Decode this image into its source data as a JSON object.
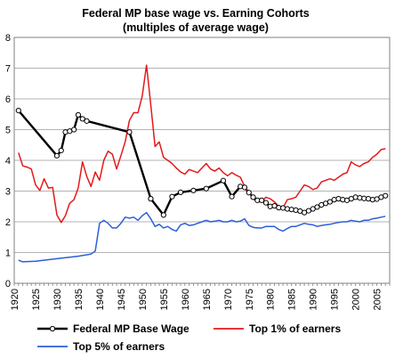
{
  "chart_data": {
    "type": "line",
    "title": "Federal MP base wage vs. Earning Cohorts",
    "subtitle": "(multiples of average wage)",
    "xlabel": "",
    "ylabel": "",
    "xlim": [
      1920,
      2008
    ],
    "ylim": [
      0,
      8
    ],
    "y_ticks": [
      0,
      1,
      2,
      3,
      4,
      5,
      6,
      7,
      8
    ],
    "x_ticks": [
      1920,
      1925,
      1930,
      1935,
      1940,
      1945,
      1950,
      1955,
      1960,
      1965,
      1970,
      1975,
      1980,
      1985,
      1990,
      1995,
      2000,
      2005
    ],
    "grid": true,
    "legend_position": "bottom",
    "series": [
      {
        "name": "Federal MP Base Wage",
        "color": "#000000",
        "markers": true,
        "points": [
          [
            1921,
            5.62
          ],
          [
            1930,
            4.15
          ],
          [
            1931,
            4.32
          ],
          [
            1932,
            4.92
          ],
          [
            1933,
            4.95
          ],
          [
            1934,
            5.0
          ],
          [
            1935,
            5.48
          ],
          [
            1936,
            5.35
          ],
          [
            1937,
            5.28
          ],
          [
            1947,
            4.92
          ],
          [
            1952,
            2.75
          ],
          [
            1955,
            2.22
          ],
          [
            1957,
            2.82
          ],
          [
            1959,
            2.96
          ],
          [
            1962,
            3.02
          ],
          [
            1965,
            3.08
          ],
          [
            1969,
            3.34
          ],
          [
            1971,
            2.82
          ],
          [
            1973,
            3.15
          ],
          [
            1974,
            3.12
          ],
          [
            1975,
            2.95
          ],
          [
            1976,
            2.8
          ],
          [
            1977,
            2.7
          ],
          [
            1978,
            2.7
          ],
          [
            1979,
            2.62
          ],
          [
            1980,
            2.5
          ],
          [
            1981,
            2.52
          ],
          [
            1982,
            2.46
          ],
          [
            1983,
            2.45
          ],
          [
            1984,
            2.42
          ],
          [
            1985,
            2.4
          ],
          [
            1986,
            2.38
          ],
          [
            1987,
            2.35
          ],
          [
            1988,
            2.3
          ],
          [
            1989,
            2.36
          ],
          [
            1990,
            2.42
          ],
          [
            1991,
            2.48
          ],
          [
            1992,
            2.55
          ],
          [
            1993,
            2.6
          ],
          [
            1994,
            2.65
          ],
          [
            1995,
            2.72
          ],
          [
            1996,
            2.75
          ],
          [
            1997,
            2.72
          ],
          [
            1998,
            2.7
          ],
          [
            1999,
            2.75
          ],
          [
            2000,
            2.8
          ],
          [
            2001,
            2.78
          ],
          [
            2002,
            2.76
          ],
          [
            2003,
            2.75
          ],
          [
            2004,
            2.72
          ],
          [
            2005,
            2.74
          ],
          [
            2006,
            2.8
          ],
          [
            2007,
            2.85
          ]
        ]
      },
      {
        "name": "Top 1% of earners",
        "color": "#e31a1c",
        "markers": false,
        "points": [
          [
            1921,
            4.25
          ],
          [
            1922,
            3.82
          ],
          [
            1923,
            3.78
          ],
          [
            1924,
            3.72
          ],
          [
            1925,
            3.2
          ],
          [
            1926,
            3.02
          ],
          [
            1927,
            3.4
          ],
          [
            1928,
            3.1
          ],
          [
            1929,
            3.12
          ],
          [
            1930,
            2.22
          ],
          [
            1931,
            1.98
          ],
          [
            1932,
            2.2
          ],
          [
            1933,
            2.6
          ],
          [
            1934,
            2.72
          ],
          [
            1935,
            3.1
          ],
          [
            1936,
            3.95
          ],
          [
            1937,
            3.48
          ],
          [
            1938,
            3.15
          ],
          [
            1939,
            3.62
          ],
          [
            1940,
            3.35
          ],
          [
            1941,
            4.0
          ],
          [
            1942,
            4.3
          ],
          [
            1943,
            4.2
          ],
          [
            1944,
            3.72
          ],
          [
            1945,
            4.15
          ],
          [
            1946,
            4.6
          ],
          [
            1947,
            5.3
          ],
          [
            1948,
            5.55
          ],
          [
            1949,
            5.55
          ],
          [
            1950,
            6.1
          ],
          [
            1951,
            7.1
          ],
          [
            1952,
            5.8
          ],
          [
            1953,
            4.45
          ],
          [
            1954,
            4.6
          ],
          [
            1955,
            4.1
          ],
          [
            1956,
            4.0
          ],
          [
            1957,
            3.9
          ],
          [
            1958,
            3.75
          ],
          [
            1959,
            3.62
          ],
          [
            1960,
            3.55
          ],
          [
            1961,
            3.7
          ],
          [
            1962,
            3.65
          ],
          [
            1963,
            3.6
          ],
          [
            1964,
            3.75
          ],
          [
            1965,
            3.9
          ],
          [
            1966,
            3.72
          ],
          [
            1967,
            3.65
          ],
          [
            1968,
            3.75
          ],
          [
            1969,
            3.6
          ],
          [
            1970,
            3.5
          ],
          [
            1971,
            3.6
          ],
          [
            1972,
            3.52
          ],
          [
            1973,
            3.45
          ],
          [
            1974,
            3.15
          ],
          [
            1975,
            2.95
          ],
          [
            1976,
            2.75
          ],
          [
            1977,
            2.65
          ],
          [
            1978,
            2.65
          ],
          [
            1979,
            2.8
          ],
          [
            1980,
            2.75
          ],
          [
            1981,
            2.65
          ],
          [
            1982,
            2.5
          ],
          [
            1983,
            2.45
          ],
          [
            1984,
            2.72
          ],
          [
            1985,
            2.75
          ],
          [
            1986,
            2.8
          ],
          [
            1987,
            3.0
          ],
          [
            1988,
            3.2
          ],
          [
            1989,
            3.15
          ],
          [
            1990,
            3.05
          ],
          [
            1991,
            3.1
          ],
          [
            1992,
            3.3
          ],
          [
            1993,
            3.35
          ],
          [
            1994,
            3.4
          ],
          [
            1995,
            3.35
          ],
          [
            1996,
            3.45
          ],
          [
            1997,
            3.55
          ],
          [
            1998,
            3.6
          ],
          [
            1999,
            3.95
          ],
          [
            2000,
            3.85
          ],
          [
            2001,
            3.8
          ],
          [
            2002,
            3.9
          ],
          [
            2003,
            3.95
          ],
          [
            2004,
            4.1
          ],
          [
            2005,
            4.2
          ],
          [
            2006,
            4.35
          ],
          [
            2007,
            4.38
          ]
        ]
      },
      {
        "name": "Top 5% of earners",
        "color": "#2b5fd9",
        "markers": false,
        "points": [
          [
            1921,
            0.75
          ],
          [
            1922,
            0.7
          ],
          [
            1925,
            0.72
          ],
          [
            1930,
            0.8
          ],
          [
            1935,
            0.88
          ],
          [
            1938,
            0.95
          ],
          [
            1939,
            1.05
          ],
          [
            1940,
            1.95
          ],
          [
            1941,
            2.05
          ],
          [
            1942,
            1.95
          ],
          [
            1943,
            1.8
          ],
          [
            1944,
            1.8
          ],
          [
            1945,
            1.95
          ],
          [
            1946,
            2.15
          ],
          [
            1947,
            2.12
          ],
          [
            1948,
            2.15
          ],
          [
            1949,
            2.05
          ],
          [
            1950,
            2.2
          ],
          [
            1951,
            2.3
          ],
          [
            1952,
            2.1
          ],
          [
            1953,
            1.85
          ],
          [
            1954,
            1.92
          ],
          [
            1955,
            1.8
          ],
          [
            1956,
            1.85
          ],
          [
            1957,
            1.75
          ],
          [
            1958,
            1.7
          ],
          [
            1959,
            1.9
          ],
          [
            1960,
            1.95
          ],
          [
            1961,
            1.88
          ],
          [
            1962,
            1.9
          ],
          [
            1963,
            1.95
          ],
          [
            1964,
            2.0
          ],
          [
            1965,
            2.05
          ],
          [
            1966,
            2.0
          ],
          [
            1967,
            2.02
          ],
          [
            1968,
            2.05
          ],
          [
            1969,
            2.0
          ],
          [
            1970,
            2.0
          ],
          [
            1971,
            2.05
          ],
          [
            1972,
            2.0
          ],
          [
            1973,
            2.02
          ],
          [
            1974,
            2.1
          ],
          [
            1975,
            1.88
          ],
          [
            1976,
            1.82
          ],
          [
            1977,
            1.8
          ],
          [
            1978,
            1.8
          ],
          [
            1979,
            1.85
          ],
          [
            1980,
            1.85
          ],
          [
            1981,
            1.85
          ],
          [
            1982,
            1.75
          ],
          [
            1983,
            1.7
          ],
          [
            1984,
            1.78
          ],
          [
            1985,
            1.85
          ],
          [
            1986,
            1.85
          ],
          [
            1987,
            1.9
          ],
          [
            1988,
            1.95
          ],
          [
            1989,
            1.92
          ],
          [
            1990,
            1.9
          ],
          [
            1991,
            1.85
          ],
          [
            1992,
            1.88
          ],
          [
            1993,
            1.9
          ],
          [
            1994,
            1.92
          ],
          [
            1995,
            1.95
          ],
          [
            1996,
            1.98
          ],
          [
            1997,
            2.0
          ],
          [
            1998,
            2.0
          ],
          [
            1999,
            2.05
          ],
          [
            2000,
            2.02
          ],
          [
            2001,
            2.0
          ],
          [
            2002,
            2.05
          ],
          [
            2003,
            2.05
          ],
          [
            2004,
            2.1
          ],
          [
            2005,
            2.12
          ],
          [
            2006,
            2.15
          ],
          [
            2007,
            2.18
          ]
        ]
      }
    ]
  }
}
